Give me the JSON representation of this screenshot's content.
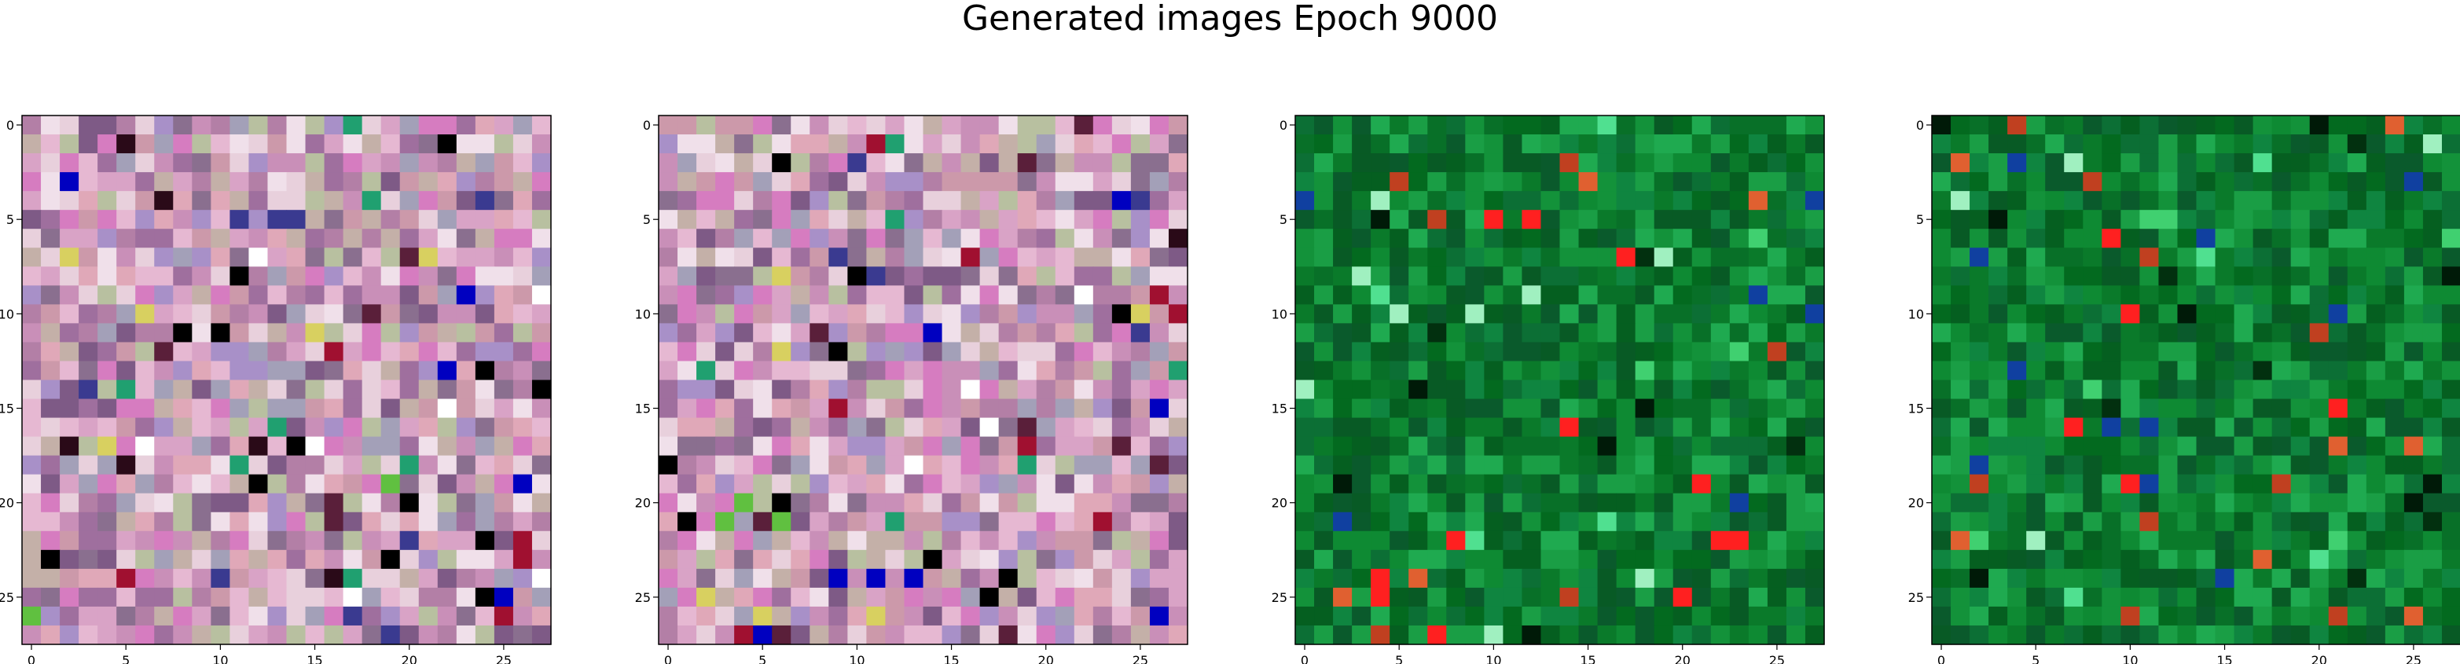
{
  "figure": {
    "title": "Generated images Epoch 9000"
  },
  "chart_data": [
    {
      "type": "heatmap",
      "panel": 1,
      "palette": "mixed-pink-purple",
      "grid_size": 28,
      "x_ticks": [
        "0",
        "5",
        "10",
        "15",
        "20",
        "25"
      ],
      "y_ticks": [
        "0",
        "5",
        "10",
        "15",
        "20",
        "25"
      ],
      "xlim": [
        -0.5,
        27.5
      ],
      "ylim": [
        27.5,
        -0.5
      ],
      "grid": false
    },
    {
      "type": "heatmap",
      "panel": 2,
      "palette": "mixed-pink-purple",
      "grid_size": 28,
      "x_ticks": [
        "0",
        "5",
        "10",
        "15",
        "20",
        "25"
      ],
      "y_ticks": [
        "0",
        "5",
        "10",
        "15",
        "20",
        "25"
      ],
      "xlim": [
        -0.5,
        27.5
      ],
      "ylim": [
        27.5,
        -0.5
      ],
      "grid": false
    },
    {
      "type": "heatmap",
      "panel": 3,
      "palette": "green",
      "grid_size": 28,
      "x_ticks": [
        "0",
        "5",
        "10",
        "15",
        "20",
        "25"
      ],
      "y_ticks": [
        "0",
        "5",
        "10",
        "15",
        "20",
        "25"
      ],
      "xlim": [
        -0.5,
        27.5
      ],
      "ylim": [
        27.5,
        -0.5
      ],
      "grid": false
    },
    {
      "type": "heatmap",
      "panel": 4,
      "palette": "green",
      "grid_size": 28,
      "x_ticks": [
        "0",
        "5",
        "10",
        "15",
        "20",
        "25"
      ],
      "y_ticks": [
        "0",
        "5",
        "10",
        "15",
        "20",
        "25"
      ],
      "xlim": [
        -0.5,
        27.5
      ],
      "ylim": [
        27.5,
        -0.5
      ],
      "grid": false
    }
  ],
  "colors": {
    "pink_palette": [
      "#d9a3c6",
      "#c98fb8",
      "#e6b8d2",
      "#b37fa6",
      "#a3a0b8",
      "#c4b0a8",
      "#e8d0dc",
      "#9f6f9e",
      "#7e5a86",
      "#d67cc0",
      "#f0e0ea",
      "#b8c0a0",
      "#a890c8",
      "#cc99aa",
      "#8a6f8f",
      "#e0a8b8"
    ],
    "pink_accents": [
      "#000000",
      "#2a0a18",
      "#5a1f3a",
      "#a01030",
      "#3a3a90",
      "#20a070",
      "#d8d060",
      "#60c040",
      "#0000c0",
      "#ffffff"
    ],
    "green_palette": [
      "#0a7a2a",
      "#0e8a33",
      "#087028",
      "#13923a",
      "#055f20",
      "#1a9e45",
      "#0c6f35",
      "#036a1f",
      "#1faa50",
      "#085a25",
      "#0f8540",
      "#0a5a2c"
    ],
    "green_accents": [
      "#001a08",
      "#02300f",
      "#40d070",
      "#50e090",
      "#e06030",
      "#ff2020",
      "#c04020",
      "#1040a0",
      "#a0f0c0"
    ]
  }
}
